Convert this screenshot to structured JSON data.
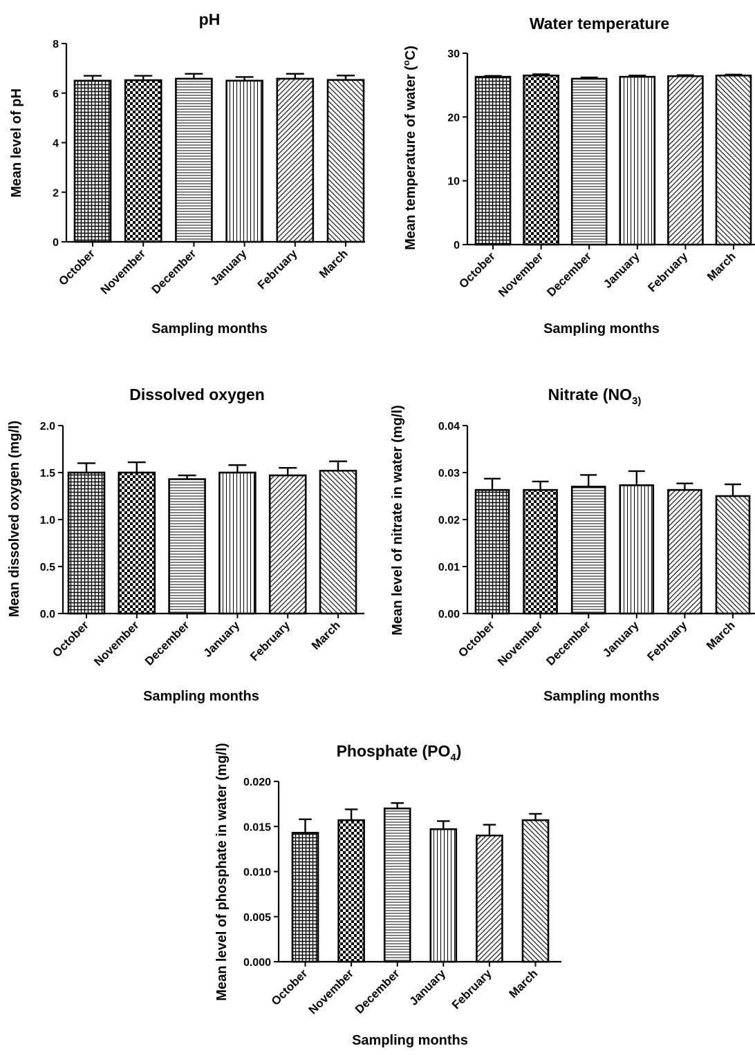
{
  "chart_data": [
    {
      "type": "bar",
      "title": "pH",
      "xlabel": "Sampling months",
      "ylabel": "Mean level of pH",
      "categories": [
        "October",
        "November",
        "December",
        "January",
        "February",
        "March"
      ],
      "values": [
        6.5,
        6.52,
        6.58,
        6.5,
        6.58,
        6.53
      ],
      "errors": [
        0.2,
        0.18,
        0.2,
        0.15,
        0.2,
        0.18
      ],
      "ylim": [
        0,
        8
      ],
      "yticks": [
        "0",
        "2",
        "4",
        "6",
        "8"
      ],
      "patterns": [
        "crosshatch",
        "checker",
        "horizontal",
        "vertical",
        "diag-up",
        "diag-down"
      ],
      "grid": false,
      "legend": "none"
    },
    {
      "type": "bar",
      "title": "Water temperature",
      "xlabel": "Sampling months",
      "ylabel": "Mean temperature of water (°C)",
      "categories": [
        "October",
        "November",
        "December",
        "January",
        "February",
        "March"
      ],
      "values": [
        26.3,
        26.5,
        26.0,
        26.3,
        26.4,
        26.5
      ],
      "errors": [
        0.15,
        0.2,
        0.2,
        0.2,
        0.15,
        0.15
      ],
      "ylim": [
        0,
        30
      ],
      "yticks": [
        "0",
        "10",
        "20",
        "30"
      ],
      "patterns": [
        "crosshatch",
        "checker",
        "horizontal",
        "vertical",
        "diag-up",
        "diag-down"
      ],
      "grid": false,
      "legend": "none"
    },
    {
      "type": "bar",
      "title": "Dissolved oxygen",
      "xlabel": "Sampling months",
      "ylabel": "Mean dissolved oxygen (mg/l)",
      "categories": [
        "October",
        "November",
        "December",
        "January",
        "February",
        "March"
      ],
      "values": [
        1.5,
        1.5,
        1.43,
        1.5,
        1.47,
        1.52
      ],
      "errors": [
        0.1,
        0.11,
        0.04,
        0.08,
        0.08,
        0.1
      ],
      "ylim": [
        0,
        2
      ],
      "yticks": [
        "0.0",
        "0.5",
        "1.0",
        "1.5",
        "2.0"
      ],
      "patterns": [
        "crosshatch",
        "checker",
        "horizontal",
        "vertical",
        "diag-up",
        "diag-down"
      ],
      "grid": false,
      "legend": "none"
    },
    {
      "type": "bar",
      "title": "Nitrate (NO3)",
      "xlabel": "Sampling months",
      "ylabel": "Mean level of nitrate in water (mg/l)",
      "categories": [
        "October",
        "November",
        "December",
        "January",
        "February",
        "March"
      ],
      "values": [
        0.0263,
        0.0263,
        0.027,
        0.0273,
        0.0263,
        0.025
      ],
      "errors": [
        0.0024,
        0.0018,
        0.0025,
        0.003,
        0.0014,
        0.0025
      ],
      "ylim": [
        0,
        0.04
      ],
      "yticks": [
        "0.00",
        "0.01",
        "0.02",
        "0.03",
        "0.04"
      ],
      "patterns": [
        "crosshatch",
        "checker",
        "horizontal",
        "vertical",
        "diag-up",
        "diag-down"
      ],
      "grid": false,
      "legend": "none"
    },
    {
      "type": "bar",
      "title": "Phosphate (PO4)",
      "xlabel": "Sampling months",
      "ylabel": "Mean level of phosphate in water (mg/l)",
      "categories": [
        "October",
        "November",
        "December",
        "January",
        "February",
        "March"
      ],
      "values": [
        0.0143,
        0.0157,
        0.017,
        0.0147,
        0.014,
        0.0157
      ],
      "errors": [
        0.0015,
        0.0012,
        0.0006,
        0.0009,
        0.0012,
        0.0007
      ],
      "ylim": [
        0,
        0.02
      ],
      "yticks": [
        "0.000",
        "0.005",
        "0.010",
        "0.015",
        "0.020"
      ],
      "patterns": [
        "crosshatch",
        "checker",
        "horizontal",
        "vertical",
        "diag-up",
        "diag-down"
      ],
      "grid": false,
      "legend": "none"
    }
  ]
}
